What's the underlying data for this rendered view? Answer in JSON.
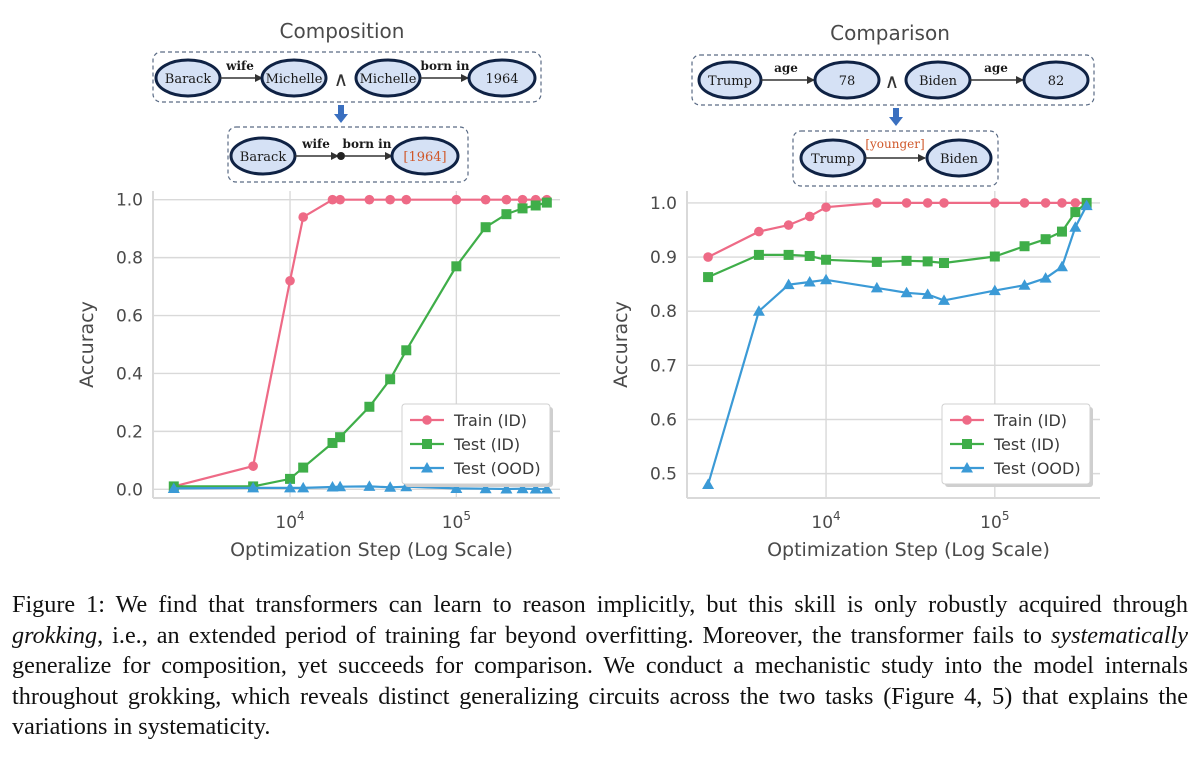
{
  "colors": {
    "train_id": "#ee6a86",
    "test_id": "#3fae49",
    "test_ood": "#3b9ad6",
    "node_fill": "#d5e1f5",
    "node_stroke": "#0f2244",
    "answer_text": "#d0582a",
    "arrow_blue": "#3a6fbf",
    "grid": "#d9d9d9",
    "axis_text": "#4a4a4a"
  },
  "diagrams": {
    "composition": {
      "title": "Composition",
      "top_row": {
        "fact1": {
          "head": "Barack",
          "relation": "wife",
          "tail": "Michelle"
        },
        "conjunction": "∧",
        "fact2": {
          "head": "Michelle",
          "relation": "born in",
          "tail": "1964"
        }
      },
      "bottom_row": {
        "head": "Barack",
        "relation1": "wife",
        "relation2": "born in",
        "answer": "[1964]"
      }
    },
    "comparison": {
      "title": "Comparison",
      "top_row": {
        "fact1": {
          "head": "Trump",
          "relation": "age",
          "tail": "78"
        },
        "conjunction": "∧",
        "fact2": {
          "head": "Biden",
          "relation": "age",
          "tail": "82"
        }
      },
      "bottom_row": {
        "head": "Trump",
        "answer": "[younger]",
        "tail": "Biden"
      }
    }
  },
  "chart_data": [
    {
      "type": "line",
      "id": "composition",
      "title": "Composition",
      "xlabel": "Optimization Step (Log Scale)",
      "ylabel": "Accuracy",
      "xscale": "log",
      "xlim": [
        1500,
        420000
      ],
      "ylim": [
        -0.03,
        1.03
      ],
      "xticks": [
        {
          "value": 10000,
          "base": "10",
          "exp": "4"
        },
        {
          "value": 100000,
          "base": "10",
          "exp": "5"
        }
      ],
      "yticks": [
        0.0,
        0.2,
        0.4,
        0.6,
        0.8,
        1.0
      ],
      "ytick_labels": [
        "0.0",
        "0.2",
        "0.4",
        "0.6",
        "0.8",
        "1.0"
      ],
      "grid": true,
      "legend_position": "lower-right",
      "x": [
        2000,
        6000,
        10000,
        12000,
        18000,
        20000,
        30000,
        40000,
        50000,
        100000,
        150000,
        200000,
        250000,
        300000,
        350000
      ],
      "series": [
        {
          "name": "Train (ID)",
          "marker": "circle",
          "values": [
            0.01,
            0.08,
            0.72,
            0.94,
            1.0,
            1.0,
            1.0,
            1.0,
            1.0,
            1.0,
            1.0,
            1.0,
            1.0,
            1.0,
            1.0
          ]
        },
        {
          "name": "Test (ID)",
          "marker": "square",
          "values": [
            0.01,
            0.01,
            0.036,
            0.075,
            0.16,
            0.18,
            0.285,
            0.38,
            0.48,
            0.77,
            0.905,
            0.95,
            0.97,
            0.98,
            0.99
          ]
        },
        {
          "name": "Test (OOD)",
          "marker": "triangle",
          "values": [
            0.003,
            0.005,
            0.005,
            0.005,
            0.008,
            0.009,
            0.01,
            0.007,
            0.009,
            0.003,
            0.002,
            0.001,
            0.002,
            0.001,
            0.001
          ]
        }
      ]
    },
    {
      "type": "line",
      "id": "comparison",
      "title": "Comparison",
      "xlabel": "Optimization Step (Log Scale)",
      "ylabel": "Accuracy",
      "xscale": "log",
      "xlim": [
        1500,
        420000
      ],
      "ylim": [
        0.455,
        1.022
      ],
      "xticks": [
        {
          "value": 10000,
          "base": "10",
          "exp": "4"
        },
        {
          "value": 100000,
          "base": "10",
          "exp": "5"
        }
      ],
      "yticks": [
        0.5,
        0.6,
        0.7,
        0.8,
        0.9,
        1.0
      ],
      "ytick_labels": [
        "0.5",
        "0.6",
        "0.7",
        "0.8",
        "0.9",
        "1.0"
      ],
      "grid": true,
      "legend_position": "lower-right",
      "x": [
        2000,
        4000,
        6000,
        8000,
        10000,
        20000,
        30000,
        40000,
        50000,
        100000,
        150000,
        200000,
        250000,
        300000,
        350000
      ],
      "series": [
        {
          "name": "Train (ID)",
          "marker": "circle",
          "values": [
            0.9,
            0.947,
            0.959,
            0.975,
            0.992,
            1.0,
            1.0,
            1.0,
            1.0,
            1.0,
            1.0,
            1.0,
            1.0,
            1.0,
            1.0
          ]
        },
        {
          "name": "Test (ID)",
          "marker": "square",
          "values": [
            0.863,
            0.904,
            0.904,
            0.902,
            0.895,
            0.891,
            0.893,
            0.892,
            0.889,
            0.901,
            0.92,
            0.933,
            0.947,
            0.983,
            1.0
          ]
        },
        {
          "name": "Test (OOD)",
          "marker": "triangle",
          "values": [
            0.48,
            0.8,
            0.849,
            0.854,
            0.858,
            0.843,
            0.834,
            0.831,
            0.82,
            0.838,
            0.848,
            0.861,
            0.882,
            0.955,
            0.995
          ]
        }
      ]
    }
  ],
  "caption": {
    "label": "Figure 1:",
    "part1": " We find that transformers can learn to reason implicitly, but this skill is only robustly acquired through ",
    "em1": "grokking",
    "part2": ", i.e., an extended period of training far beyond overfitting.  Moreover, the transformer fails to ",
    "em2": "systematically",
    "part3": " generalize for composition, yet succeeds for comparison. We conduct a mechanistic study into the model internals throughout grokking, which reveals distinct generalizing circuits across the two tasks (Figure 4, 5) that explains the variations in systematicity."
  }
}
